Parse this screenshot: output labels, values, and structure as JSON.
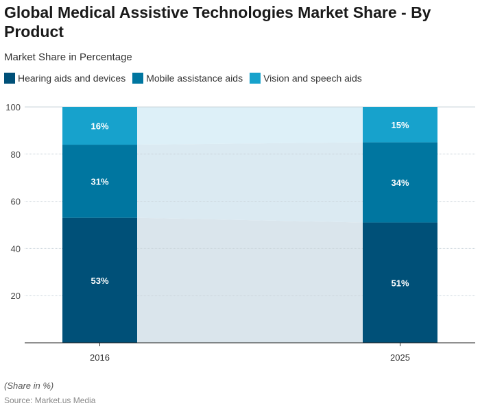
{
  "chart_data": {
    "type": "bar",
    "stacked": true,
    "title": "Global Medical Assistive Technologies Market Share - By Product",
    "subtitle": "Market Share in Percentage",
    "categories": [
      "2016",
      "2025"
    ],
    "series": [
      {
        "name": "Hearing aids and devices",
        "values": [
          53,
          51
        ],
        "color": "#005078"
      },
      {
        "name": "Mobile assistance aids",
        "values": [
          31,
          34
        ],
        "color": "#0076a0"
      },
      {
        "name": "Vision and speech aids",
        "values": [
          16,
          15
        ],
        "color": "#17a2cc"
      }
    ],
    "ylim": [
      0,
      100
    ],
    "yticks": [
      20,
      40,
      60,
      80,
      100
    ],
    "grid": true,
    "legend": "top-left",
    "note": "(Share in %)",
    "source": "Source: Market.us Media"
  }
}
